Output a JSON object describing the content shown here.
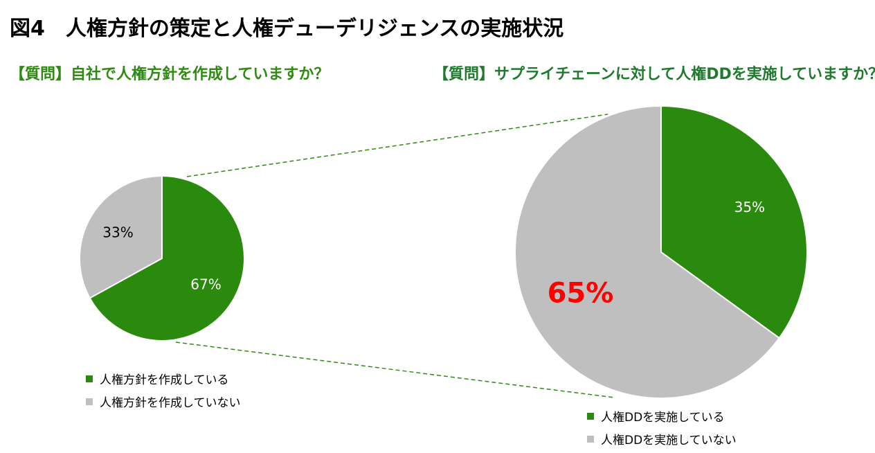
{
  "figure": {
    "title": "図4　人権方針の策定と人権デューデリジェンスの実施状況"
  },
  "colors": {
    "green": "#2a8a0e",
    "gray": "#bfbfbf",
    "highlight": "#ff0000",
    "leader": "#2e8a12"
  },
  "chart_data": [
    {
      "type": "pie",
      "title": "【質問】自社で人権方針を作成していますか？",
      "slices": [
        {
          "label": "人権方針を作成している",
          "value": 67,
          "data_label": "67%",
          "color": "#2a8a0e"
        },
        {
          "label": "人権方針を作成していない",
          "value": 33,
          "data_label": "33%",
          "color": "#bfbfbf"
        }
      ],
      "legend_position": "bottom"
    },
    {
      "type": "pie",
      "title": "【質問】サプライチェーンに対して人権DDを実施していますか？",
      "slices": [
        {
          "label": "人権DDを実施している",
          "value": 35,
          "data_label": "35%",
          "color": "#2a8a0e"
        },
        {
          "label": "人権DDを実施していない",
          "value": 65,
          "data_label": "65%",
          "color": "#bfbfbf",
          "emphasis": true
        }
      ],
      "legend_position": "bottom"
    }
  ]
}
